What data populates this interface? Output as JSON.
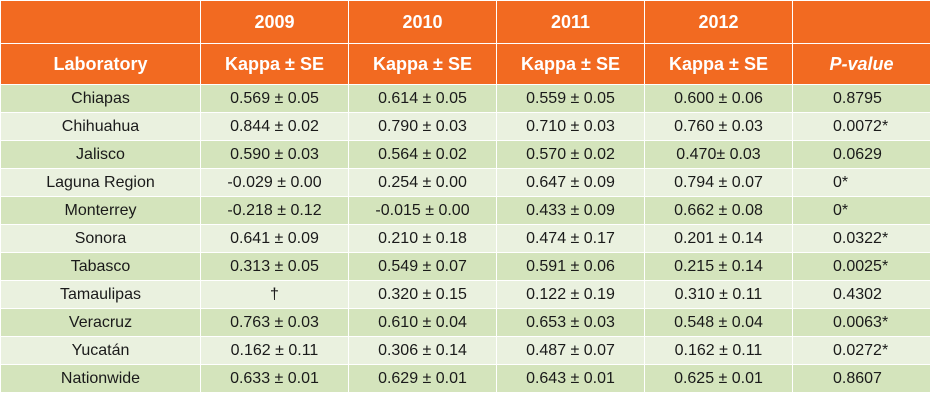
{
  "table": {
    "year_headers": [
      "2009",
      "2010",
      "2011",
      "2012"
    ],
    "column_headers": {
      "laboratory": "Laboratory",
      "kappa": "Kappa ± SE",
      "pvalue": "P-value"
    },
    "rows": [
      {
        "lab": "Chiapas",
        "y2009": "0.569 ± 0.05",
        "y2010": "0.614 ± 0.05",
        "y2011": "0.559 ± 0.05",
        "y2012": "0.600 ± 0.06",
        "p": "0.8795"
      },
      {
        "lab": "Chihuahua",
        "y2009": "0.844 ± 0.02",
        "y2010": "0.790 ± 0.03",
        "y2011": "0.710 ± 0.03",
        "y2012": "0.760 ± 0.03",
        "p": "0.0072*"
      },
      {
        "lab": "Jalisco",
        "y2009": "0.590 ± 0.03",
        "y2010": "0.564 ± 0.02",
        "y2011": "0.570 ± 0.02",
        "y2012": "0.470± 0.03",
        "p": "0.0629"
      },
      {
        "lab": "Laguna Region",
        "y2009": "-0.029 ± 0.00",
        "y2010": "0.254 ± 0.00",
        "y2011": "0.647 ± 0.09",
        "y2012": "0.794 ± 0.07",
        "p": "0*"
      },
      {
        "lab": "Monterrey",
        "y2009": "-0.218 ± 0.12",
        "y2010": "-0.015 ± 0.00",
        "y2011": "0.433 ± 0.09",
        "y2012": "0.662 ± 0.08",
        "p": "0*"
      },
      {
        "lab": "Sonora",
        "y2009": "0.641 ± 0.09",
        "y2010": "0.210 ± 0.18",
        "y2011": "0.474 ± 0.17",
        "y2012": "0.201 ± 0.14",
        "p": "0.0322*"
      },
      {
        "lab": "Tabasco",
        "y2009": "0.313 ± 0.05",
        "y2010": "0.549 ± 0.07",
        "y2011": "0.591 ± 0.06",
        "y2012": "0.215 ± 0.14",
        "p": "0.0025*"
      },
      {
        "lab": "Tamaulipas",
        "y2009": "†",
        "y2010": "0.320 ± 0.15",
        "y2011": "0.122 ± 0.19",
        "y2012": "0.310 ± 0.11",
        "p": "0.4302"
      },
      {
        "lab": "Veracruz",
        "y2009": "0.763 ± 0.03",
        "y2010": "0.610 ± 0.04",
        "y2011": "0.653 ± 0.03",
        "y2012": "0.548 ± 0.04",
        "p": "0.0063*"
      },
      {
        "lab": "Yucatán",
        "y2009": "0.162 ± 0.11",
        "y2010": "0.306 ± 0.14",
        "y2011": "0.487 ± 0.07",
        "y2012": "0.162 ± 0.11",
        "p": "0.0272*"
      },
      {
        "lab": "Nationwide",
        "y2009": "0.633 ± 0.01",
        "y2010": "0.629 ± 0.01",
        "y2011": "0.643 ± 0.01",
        "y2012": "0.625 ± 0.01",
        "p": "0.8607"
      }
    ]
  },
  "colors": {
    "header_orange": "#f26a21",
    "row_green_dark": "#d4e4bc",
    "row_green_light": "#eaf1df",
    "border_white": "#ffffff"
  }
}
